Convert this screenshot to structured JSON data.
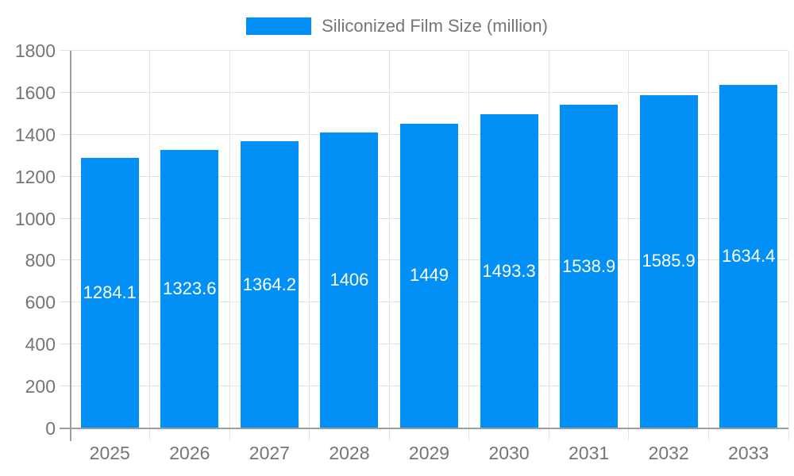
{
  "legend": {
    "label": "Siliconized Film Size (million)"
  },
  "chart_data": {
    "type": "bar",
    "title": "",
    "xlabel": "",
    "ylabel": "",
    "categories": [
      "2025",
      "2026",
      "2027",
      "2028",
      "2029",
      "2030",
      "2031",
      "2032",
      "2033"
    ],
    "series": [
      {
        "name": "Siliconized Film Size (million)",
        "values": [
          1284.1,
          1323.6,
          1364.2,
          1406,
          1449,
          1493.3,
          1538.9,
          1585.9,
          1634.4
        ]
      }
    ],
    "value_labels": [
      "1284.1",
      "1323.6",
      "1364.2",
      "1406",
      "1449",
      "1493.3",
      "1538.9",
      "1585.9",
      "1634.4"
    ],
    "ylim": [
      0,
      1800
    ],
    "ytick_step": 200,
    "grid": true,
    "legend_position": "top-center",
    "colors": {
      "bar": "#0290f7",
      "grid": "#e2e2e2",
      "axis": "#9e9e9e",
      "tick_text": "#757575",
      "value_text": "#ffffff",
      "background": "#ffffff"
    }
  }
}
